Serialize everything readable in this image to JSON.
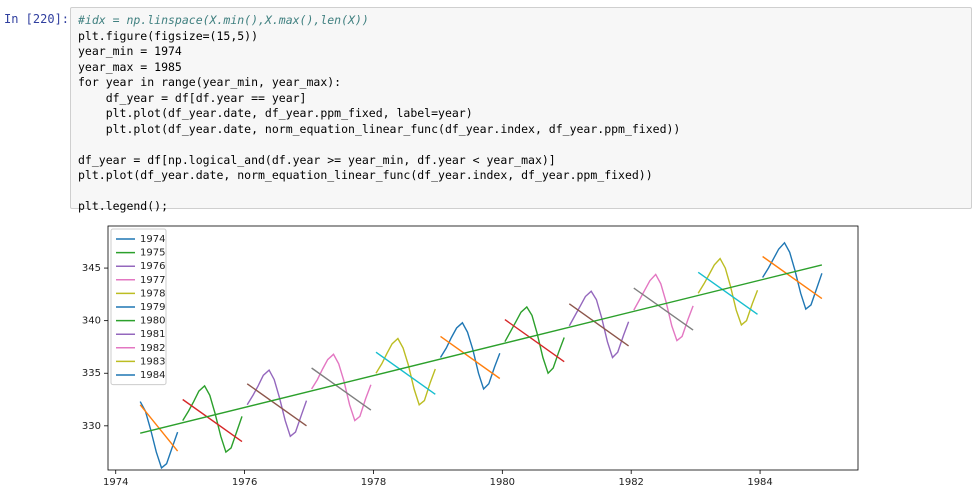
{
  "cell": {
    "prompt": "In [220]:",
    "code": [
      [
        "#idx = np.linspace(X.min(),X.max(),len(X))",
        "plt.figure(figsize=(15,5))",
        "year_min = 1974",
        "year_max = 1985",
        "for year in range(year_min, year_max):",
        "    df_year = df[df.year == year]",
        "    plt.plot(df_year.date, df_year.ppm_fixed, label=year)",
        "    plt.plot(df_year.date, norm_equation_linear_func(df_year.index, df_year.ppm_fixed))"
      ],
      [
        "df_year = df[np.logical_and(df.year >= year_min, df.year < year_max)]",
        "plt.plot(df_year.date, norm_equation_linear_func(df_year.index, df_year.ppm_fixed))"
      ],
      [
        "plt.legend();"
      ]
    ]
  },
  "chart_data": {
    "type": "line",
    "xlim": [
      1973.88,
      1985.52
    ],
    "ylim": [
      325.8,
      349
    ],
    "xticks": [
      1974,
      1976,
      1978,
      1980,
      1982,
      1984
    ],
    "yticks": [
      330,
      335,
      340,
      345
    ],
    "legend": "upper left",
    "series": [
      {
        "name": "1974",
        "color": "#1f77b4",
        "x": [
          1974.38,
          1974.46,
          1974.54,
          1974.63,
          1974.71,
          1974.79,
          1974.88,
          1974.96
        ],
        "values": [
          332.3,
          331.4,
          329.7,
          327.5,
          326.0,
          326.4,
          328.0,
          329.4
        ]
      },
      {
        "name": "1975",
        "color": "#2ca02c",
        "x": [
          1975.04,
          1975.13,
          1975.21,
          1975.29,
          1975.38,
          1975.46,
          1975.54,
          1975.63,
          1975.71,
          1975.79,
          1975.88,
          1975.96
        ],
        "values": [
          330.5,
          331.4,
          332.3,
          333.3,
          333.8,
          332.9,
          331.2,
          329.0,
          327.5,
          327.9,
          329.5,
          330.9
        ]
      },
      {
        "name": "1976",
        "color": "#9467bd",
        "x": [
          1976.04,
          1976.13,
          1976.21,
          1976.29,
          1976.38,
          1976.46,
          1976.54,
          1976.63,
          1976.71,
          1976.79,
          1976.88,
          1976.96
        ],
        "values": [
          332.0,
          332.9,
          333.8,
          334.8,
          335.3,
          334.4,
          332.7,
          330.5,
          329.0,
          329.4,
          331.0,
          332.4
        ]
      },
      {
        "name": "1977",
        "color": "#e377c2",
        "x": [
          1977.04,
          1977.13,
          1977.21,
          1977.29,
          1977.38,
          1977.46,
          1977.54,
          1977.63,
          1977.71,
          1977.79,
          1977.88,
          1977.96
        ],
        "values": [
          333.5,
          334.4,
          335.4,
          336.3,
          336.8,
          335.9,
          334.3,
          332.0,
          330.5,
          330.9,
          332.6,
          333.9
        ]
      },
      {
        "name": "1978",
        "color": "#bcbd22",
        "x": [
          1978.04,
          1978.13,
          1978.21,
          1978.29,
          1978.38,
          1978.46,
          1978.54,
          1978.63,
          1978.71,
          1978.79,
          1978.88,
          1978.96
        ],
        "values": [
          335.0,
          335.9,
          336.9,
          337.8,
          338.3,
          337.4,
          335.8,
          333.5,
          332.0,
          332.4,
          334.1,
          335.4
        ]
      },
      {
        "name": "1979",
        "color": "#1f77b4",
        "x": [
          1979.04,
          1979.13,
          1979.21,
          1979.29,
          1979.38,
          1979.46,
          1979.54,
          1979.63,
          1979.71,
          1979.79,
          1979.88,
          1979.96
        ],
        "values": [
          336.5,
          337.4,
          338.4,
          339.3,
          339.8,
          338.9,
          337.3,
          335.0,
          333.5,
          334.0,
          335.6,
          336.9
        ]
      },
      {
        "name": "1980",
        "color": "#2ca02c",
        "x": [
          1980.04,
          1980.13,
          1980.21,
          1980.29,
          1980.38,
          1980.46,
          1980.54,
          1980.63,
          1980.71,
          1980.79,
          1980.88,
          1980.96
        ],
        "values": [
          338.0,
          339.0,
          339.9,
          340.8,
          341.3,
          340.5,
          338.8,
          336.5,
          335.0,
          335.5,
          337.1,
          338.4
        ]
      },
      {
        "name": "1981",
        "color": "#9467bd",
        "x": [
          1981.04,
          1981.13,
          1981.21,
          1981.29,
          1981.38,
          1981.46,
          1981.54,
          1981.63,
          1981.71,
          1981.79,
          1981.88,
          1981.96
        ],
        "values": [
          339.5,
          340.5,
          341.4,
          342.3,
          342.8,
          342.0,
          340.3,
          338.0,
          336.5,
          337.0,
          338.6,
          339.9
        ]
      },
      {
        "name": "1982",
        "color": "#e377c2",
        "x": [
          1982.04,
          1982.13,
          1982.21,
          1982.29,
          1982.38,
          1982.46,
          1982.54,
          1982.63,
          1982.71,
          1982.79,
          1982.88,
          1982.96
        ],
        "values": [
          341.0,
          342.0,
          342.9,
          343.8,
          344.4,
          343.5,
          341.8,
          339.5,
          338.1,
          338.5,
          340.1,
          341.4
        ]
      },
      {
        "name": "1983",
        "color": "#bcbd22",
        "x": [
          1983.04,
          1983.13,
          1983.21,
          1983.29,
          1983.38,
          1983.46,
          1983.54,
          1983.63,
          1983.71,
          1983.79,
          1983.88,
          1983.96
        ],
        "values": [
          342.6,
          343.5,
          344.4,
          345.3,
          345.9,
          345.0,
          343.3,
          341.0,
          339.6,
          340.0,
          341.6,
          342.9
        ]
      },
      {
        "name": "1984",
        "color": "#1f77b4",
        "x": [
          1984.04,
          1984.13,
          1984.21,
          1984.29,
          1984.38,
          1984.46,
          1984.54,
          1984.63,
          1984.71,
          1984.79,
          1984.88,
          1984.96
        ],
        "values": [
          344.1,
          345.0,
          345.9,
          346.8,
          347.4,
          346.5,
          344.8,
          342.6,
          341.1,
          341.5,
          343.1,
          344.5
        ]
      }
    ],
    "fits": [
      {
        "color": "#ff7f0e",
        "x": [
          1974.38,
          1974.96
        ],
        "values": [
          332.0,
          327.6
        ]
      },
      {
        "color": "#d62728",
        "x": [
          1975.04,
          1975.96
        ],
        "values": [
          332.5,
          328.5
        ]
      },
      {
        "color": "#8c564b",
        "x": [
          1976.04,
          1976.96
        ],
        "values": [
          334.0,
          330.0
        ]
      },
      {
        "color": "#7f7f7f",
        "x": [
          1977.04,
          1977.96
        ],
        "values": [
          335.5,
          331.5
        ]
      },
      {
        "color": "#17becf",
        "x": [
          1978.04,
          1978.96
        ],
        "values": [
          337.0,
          333.0
        ]
      },
      {
        "color": "#ff7f0e",
        "x": [
          1979.04,
          1979.96
        ],
        "values": [
          338.5,
          334.5
        ]
      },
      {
        "color": "#d62728",
        "x": [
          1980.04,
          1980.96
        ],
        "values": [
          340.1,
          336.1
        ]
      },
      {
        "color": "#8c564b",
        "x": [
          1981.04,
          1981.96
        ],
        "values": [
          341.6,
          337.6
        ]
      },
      {
        "color": "#7f7f7f",
        "x": [
          1982.04,
          1982.96
        ],
        "values": [
          343.1,
          339.1
        ]
      },
      {
        "color": "#17becf",
        "x": [
          1983.04,
          1983.96
        ],
        "values": [
          344.6,
          340.6
        ]
      },
      {
        "color": "#ff7f0e",
        "x": [
          1984.04,
          1984.96
        ],
        "values": [
          346.1,
          342.1
        ]
      }
    ],
    "trend": {
      "color": "#2ca02c",
      "x": [
        1974.38,
        1984.96
      ],
      "values": [
        329.3,
        345.3
      ]
    }
  }
}
